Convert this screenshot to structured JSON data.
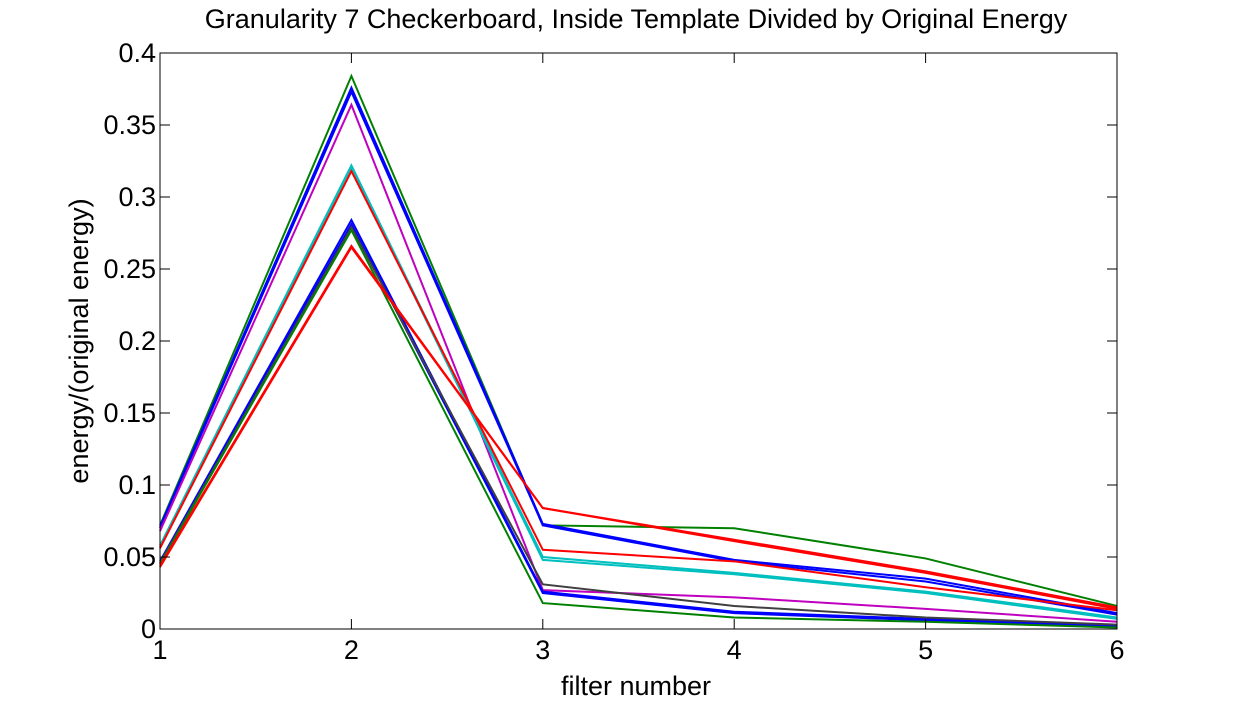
{
  "chart_data": {
    "type": "line",
    "title": "Granularity 7 Checkerboard, Inside Template Divided by Original Energy",
    "xlabel": "filter number",
    "ylabel": "energy/(original energy)",
    "xlim": [
      1,
      6
    ],
    "ylim": [
      0,
      0.4
    ],
    "x_ticks": [
      "1",
      "2",
      "3",
      "4",
      "5",
      "6"
    ],
    "y_ticks": [
      "0",
      "0.05",
      "0.1",
      "0.15",
      "0.2",
      "0.25",
      "0.3",
      "0.35",
      "0.4"
    ],
    "grid": false,
    "legend": "none",
    "x": [
      1,
      2,
      3,
      4,
      5,
      6
    ],
    "series": [
      {
        "color": "#008000",
        "values": [
          0.072,
          0.384,
          0.072,
          0.07,
          0.049,
          0.016
        ]
      },
      {
        "color": "#0000ff",
        "values": [
          0.071,
          0.376,
          0.073,
          0.048,
          0.035,
          0.011
        ]
      },
      {
        "color": "#0000ff",
        "values": [
          0.07,
          0.373,
          0.072,
          0.047,
          0.033,
          0.01
        ]
      },
      {
        "color": "#bf00bf",
        "values": [
          0.068,
          0.364,
          0.027,
          0.022,
          0.014,
          0.005
        ]
      },
      {
        "color": "#00bfbf",
        "values": [
          0.058,
          0.322,
          0.05,
          0.039,
          0.026,
          0.008
        ]
      },
      {
        "color": "#00bfbf",
        "values": [
          0.057,
          0.321,
          0.048,
          0.038,
          0.025,
          0.007
        ]
      },
      {
        "color": "#ff0000",
        "values": [
          0.056,
          0.318,
          0.055,
          0.047,
          0.029,
          0.013
        ]
      },
      {
        "color": "#0000ff",
        "values": [
          0.047,
          0.284,
          0.026,
          0.012,
          0.007,
          0.002
        ]
      },
      {
        "color": "#0000ff",
        "values": [
          0.046,
          0.281,
          0.025,
          0.011,
          0.006,
          0.002
        ]
      },
      {
        "color": "#404040",
        "values": [
          0.046,
          0.279,
          0.031,
          0.016,
          0.008,
          0.003
        ]
      },
      {
        "color": "#008000",
        "values": [
          0.045,
          0.277,
          0.018,
          0.008,
          0.005,
          0.001
        ]
      },
      {
        "color": "#ff0000",
        "values": [
          0.044,
          0.266,
          0.084,
          0.062,
          0.04,
          0.015
        ]
      },
      {
        "color": "#ff0000",
        "values": [
          0.043,
          0.265,
          0.084,
          0.061,
          0.039,
          0.014
        ]
      }
    ]
  }
}
